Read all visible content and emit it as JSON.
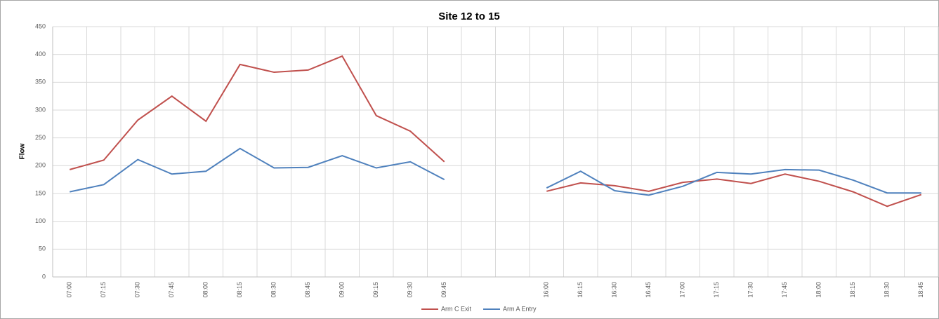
{
  "chart_data": {
    "type": "line",
    "title": "Site 12 to 15",
    "y_label": "Flow",
    "categories": [
      "07:00",
      "07:15",
      "07:30",
      "07:45",
      "08:00",
      "08:15",
      "08:30",
      "08:45",
      "09:00",
      "09:15",
      "09:30",
      "09:45",
      null,
      null,
      "16:00",
      "16:15",
      "16:30",
      "16:45",
      "17:00",
      "17:15",
      "17:30",
      "17:45",
      "18:00",
      "18:15",
      "18:30",
      "18:45"
    ],
    "series": [
      {
        "name": "Arm C Exit",
        "color": "#c0504d",
        "values": [
          193,
          210,
          282,
          325,
          280,
          382,
          368,
          372,
          397,
          290,
          262,
          207,
          null,
          null,
          154,
          169,
          164,
          154,
          170,
          176,
          168,
          185,
          172,
          153,
          127,
          148
        ]
      },
      {
        "name": "Arm A Entry",
        "color": "#4f81bd",
        "values": [
          153,
          166,
          211,
          185,
          190,
          231,
          196,
          197,
          218,
          196,
          207,
          175,
          null,
          null,
          160,
          190,
          155,
          147,
          163,
          188,
          185,
          193,
          192,
          174,
          151,
          151
        ]
      }
    ],
    "ylim": [
      0,
      450
    ],
    "yticks": [
      0,
      50,
      100,
      150,
      200,
      250,
      300,
      350,
      400,
      450
    ],
    "grid": true,
    "legend": "bottom"
  }
}
